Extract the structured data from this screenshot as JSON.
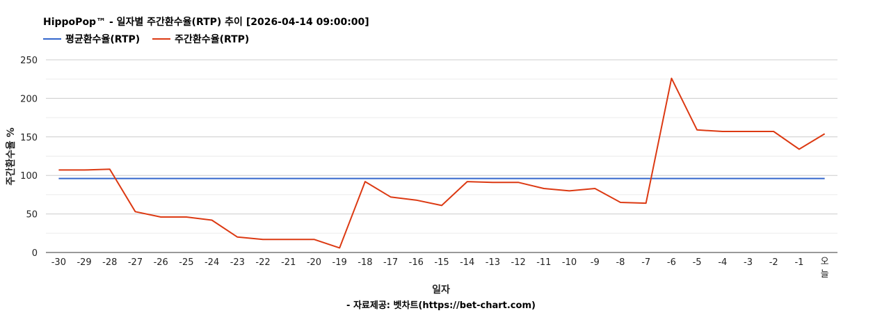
{
  "chart_data": {
    "type": "line",
    "title": "HippoPop™ - 일자별 주간환수율(RTP) 추이 [2026-04-14 09:00:00]",
    "xlabel": "일자",
    "ylabel": "주간환수율 %",
    "source_note": "- 자료제공: 벳차트(https://bet-chart.com)",
    "ylim": [
      0,
      250
    ],
    "yticks": [
      "0",
      "50",
      "100",
      "150",
      "200",
      "250"
    ],
    "grid": true,
    "legend_position": "top-left",
    "categories": [
      "-30",
      "-29",
      "-28",
      "-27",
      "-26",
      "-25",
      "-24",
      "-23",
      "-22",
      "-21",
      "-20",
      "-19",
      "-18",
      "-17",
      "-16",
      "-15",
      "-14",
      "-13",
      "-12",
      "-11",
      "-10",
      "-9",
      "-8",
      "-7",
      "-6",
      "-5",
      "-4",
      "-3",
      "-2",
      "-1",
      "오늘"
    ],
    "series": [
      {
        "name": "평균환수율(RTP)",
        "color": "#3366cc",
        "values": [
          96,
          96,
          96,
          96,
          96,
          96,
          96,
          96,
          96,
          96,
          96,
          96,
          96,
          96,
          96,
          96,
          96,
          96,
          96,
          96,
          96,
          96,
          96,
          96,
          96,
          96,
          96,
          96,
          96,
          96,
          96
        ]
      },
      {
        "name": "주간환수율(RTP)",
        "color": "#dc3912",
        "values": [
          107,
          107,
          108,
          53,
          46,
          46,
          42,
          20,
          17,
          17,
          17,
          6,
          92,
          72,
          68,
          61,
          92,
          91,
          91,
          83,
          80,
          83,
          65,
          64,
          226,
          159,
          157,
          157,
          157,
          134,
          154
        ]
      }
    ]
  }
}
